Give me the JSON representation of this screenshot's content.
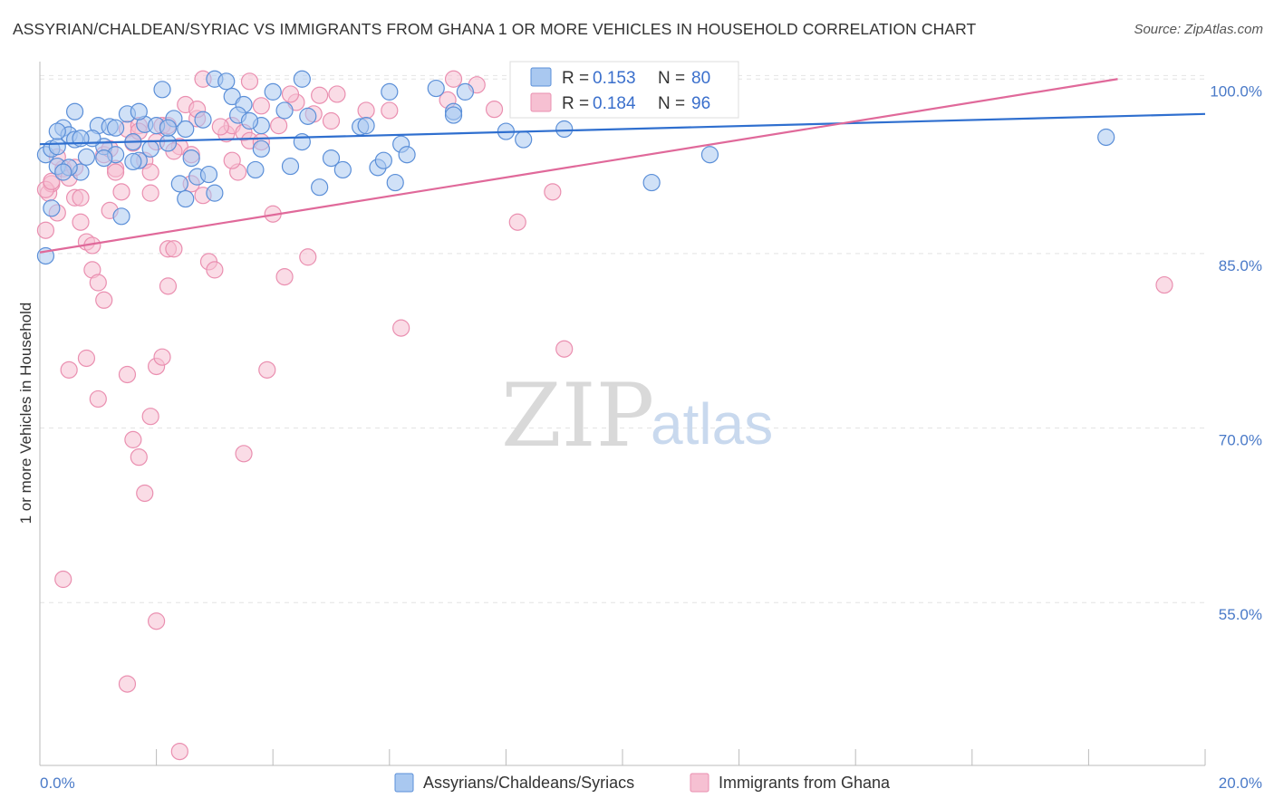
{
  "header": {
    "title": "ASSYRIAN/CHALDEAN/SYRIAC VS IMMIGRANTS FROM GHANA 1 OR MORE VEHICLES IN HOUSEHOLD CORRELATION CHART",
    "source": "Source: ZipAtlas.com"
  },
  "watermark": {
    "zip": "ZIP",
    "atlas": "atlas"
  },
  "colors": {
    "blue_fill": "#a9c8f0",
    "blue_stroke": "#5b8fd8",
    "blue_line": "#2f6fcf",
    "pink_fill": "#f6c0d2",
    "pink_stroke": "#ea8fb0",
    "pink_line": "#e0699a",
    "tick_text": "#4a7ac8",
    "grid": "#e4e4e4"
  },
  "legend": {
    "rows": [
      {
        "r_label": "R =",
        "r_value": "0.153",
        "n_label": "N =",
        "n_value": "80",
        "series": "blue"
      },
      {
        "r_label": "R =",
        "r_value": "0.184",
        "n_label": "N =",
        "n_value": "96",
        "series": "pink"
      }
    ]
  },
  "bottom_legend": [
    {
      "label": "Assyrians/Chaldeans/Syriacs",
      "series": "blue"
    },
    {
      "label": "Immigrants from Ghana",
      "series": "pink"
    }
  ],
  "chart_data": {
    "type": "scatter",
    "title": "ASSYRIAN/CHALDEAN/SYRIAC VS IMMIGRANTS FROM GHANA 1 OR MORE VEHICLES IN HOUSEHOLD CORRELATION CHART",
    "xlabel": "",
    "ylabel": "1 or more Vehicles in Household",
    "xlim": [
      0,
      20
    ],
    "ylim": [
      41,
      101.5
    ],
    "x_tick_labels": [
      "0.0%",
      "20.0%"
    ],
    "x_minor_ticks": [
      2,
      4,
      6,
      8,
      10,
      12,
      14,
      16,
      18
    ],
    "y_ticks": [
      55,
      70,
      85,
      100
    ],
    "y_tick_labels": [
      "55.0%",
      "70.0%",
      "85.0%",
      "100.0%"
    ],
    "series": [
      {
        "name": "Assyrians/Chaldeans/Syriacs",
        "color": "blue",
        "R": 0.153,
        "N": 80,
        "trend": {
          "x": [
            0,
            20
          ],
          "y": [
            94.4,
            97.0
          ]
        },
        "points": [
          [
            0.1,
            93.5
          ],
          [
            0.2,
            94.0
          ],
          [
            0.3,
            92.5
          ],
          [
            0.4,
            95.8
          ],
          [
            0.5,
            95.2
          ],
          [
            0.6,
            94.8
          ],
          [
            0.7,
            92.0
          ],
          [
            0.8,
            93.3
          ],
          [
            1.0,
            96.0
          ],
          [
            1.1,
            94.2
          ],
          [
            1.2,
            95.9
          ],
          [
            1.3,
            93.5
          ],
          [
            1.5,
            97.0
          ],
          [
            1.6,
            94.6
          ],
          [
            1.7,
            93.0
          ],
          [
            1.8,
            96.1
          ],
          [
            2.1,
            99.1
          ],
          [
            2.2,
            94.5
          ],
          [
            2.3,
            96.6
          ],
          [
            2.4,
            91.0
          ],
          [
            2.5,
            89.7
          ],
          [
            2.6,
            93.2
          ],
          [
            2.8,
            96.5
          ],
          [
            3.0,
            100.0
          ],
          [
            3.2,
            99.8
          ],
          [
            3.3,
            98.5
          ],
          [
            3.5,
            97.8
          ],
          [
            3.7,
            92.2
          ],
          [
            3.8,
            96.0
          ],
          [
            4.0,
            98.9
          ],
          [
            4.2,
            97.3
          ],
          [
            4.3,
            92.5
          ],
          [
            4.5,
            100.0
          ],
          [
            4.8,
            90.7
          ],
          [
            5.0,
            93.2
          ],
          [
            5.2,
            92.2
          ],
          [
            5.5,
            95.9
          ],
          [
            5.8,
            92.4
          ],
          [
            6.0,
            98.9
          ],
          [
            6.2,
            94.4
          ],
          [
            6.3,
            93.5
          ],
          [
            6.8,
            99.2
          ],
          [
            7.1,
            97.2
          ],
          [
            7.3,
            98.9
          ],
          [
            8.0,
            95.5
          ],
          [
            8.3,
            94.8
          ],
          [
            9.0,
            95.7
          ],
          [
            10.5,
            91.1
          ],
          [
            11.5,
            93.5
          ],
          [
            18.3,
            95.0
          ],
          [
            0.2,
            88.9
          ],
          [
            0.3,
            94.2
          ],
          [
            0.5,
            92.4
          ],
          [
            1.4,
            88.2
          ],
          [
            2.0,
            96.0
          ],
          [
            2.7,
            91.6
          ],
          [
            3.0,
            90.2
          ],
          [
            0.6,
            97.2
          ],
          [
            1.3,
            95.8
          ],
          [
            1.6,
            92.9
          ],
          [
            2.2,
            95.8
          ],
          [
            0.9,
            94.9
          ],
          [
            1.9,
            94.0
          ],
          [
            2.9,
            91.8
          ],
          [
            3.4,
            96.9
          ],
          [
            4.5,
            94.6
          ],
          [
            5.6,
            96.0
          ],
          [
            6.1,
            91.1
          ],
          [
            0.1,
            84.8
          ],
          [
            0.3,
            95.5
          ],
          [
            0.7,
            94.9
          ],
          [
            1.1,
            93.2
          ],
          [
            0.4,
            92.0
          ],
          [
            1.7,
            97.2
          ],
          [
            2.5,
            95.7
          ],
          [
            3.6,
            96.4
          ],
          [
            4.6,
            96.8
          ],
          [
            7.1,
            96.9
          ],
          [
            3.8,
            94.0
          ],
          [
            5.9,
            93.0
          ]
        ]
      },
      {
        "name": "Immigrants from Ghana",
        "color": "pink",
        "R": 0.184,
        "N": 96,
        "trend": {
          "x": [
            0,
            18.5
          ],
          "y": [
            85.1,
            100.0
          ]
        },
        "points": [
          [
            0.1,
            87.0
          ],
          [
            0.15,
            90.2
          ],
          [
            0.2,
            91.0
          ],
          [
            0.3,
            88.5
          ],
          [
            0.4,
            92.3
          ],
          [
            0.5,
            91.5
          ],
          [
            0.6,
            89.8
          ],
          [
            0.7,
            87.7
          ],
          [
            0.8,
            86.0
          ],
          [
            0.9,
            83.6
          ],
          [
            1.0,
            82.5
          ],
          [
            1.1,
            81.0
          ],
          [
            1.2,
            88.7
          ],
          [
            1.3,
            92.3
          ],
          [
            1.4,
            90.3
          ],
          [
            1.5,
            95.7
          ],
          [
            1.6,
            94.5
          ],
          [
            1.7,
            96.0
          ],
          [
            1.8,
            93.0
          ],
          [
            1.9,
            92.0
          ],
          [
            2.0,
            94.6
          ],
          [
            2.1,
            96.0
          ],
          [
            2.2,
            85.4
          ],
          [
            2.3,
            85.4
          ],
          [
            2.4,
            94.2
          ],
          [
            2.5,
            97.8
          ],
          [
            2.6,
            93.5
          ],
          [
            2.7,
            96.6
          ],
          [
            2.8,
            90.0
          ],
          [
            2.9,
            84.3
          ],
          [
            3.0,
            83.6
          ],
          [
            3.2,
            95.3
          ],
          [
            3.3,
            96.0
          ],
          [
            3.4,
            92.0
          ],
          [
            3.5,
            95.4
          ],
          [
            3.6,
            94.7
          ],
          [
            3.8,
            97.7
          ],
          [
            4.0,
            88.4
          ],
          [
            4.2,
            83.0
          ],
          [
            4.4,
            98.0
          ],
          [
            4.6,
            84.7
          ],
          [
            4.8,
            98.6
          ],
          [
            5.0,
            96.4
          ],
          [
            5.6,
            97.3
          ],
          [
            6.0,
            97.3
          ],
          [
            6.2,
            78.6
          ],
          [
            7.0,
            98.2
          ],
          [
            7.5,
            99.5
          ],
          [
            7.8,
            97.4
          ],
          [
            8.2,
            87.7
          ],
          [
            8.5,
            97.5
          ],
          [
            8.8,
            90.3
          ],
          [
            9.0,
            76.8
          ],
          [
            0.5,
            75.0
          ],
          [
            0.8,
            76.0
          ],
          [
            1.0,
            72.5
          ],
          [
            1.5,
            74.6
          ],
          [
            1.6,
            69.0
          ],
          [
            1.7,
            67.5
          ],
          [
            1.8,
            64.4
          ],
          [
            1.9,
            71.0
          ],
          [
            2.0,
            75.3
          ],
          [
            2.1,
            76.1
          ],
          [
            2.2,
            82.2
          ],
          [
            3.5,
            67.8
          ],
          [
            3.9,
            75.0
          ],
          [
            0.4,
            57.0
          ],
          [
            1.5,
            48.0
          ],
          [
            2.0,
            53.4
          ],
          [
            2.4,
            42.2
          ],
          [
            19.3,
            82.3
          ],
          [
            0.1,
            90.5
          ],
          [
            0.2,
            91.2
          ],
          [
            0.3,
            93.3
          ],
          [
            0.6,
            92.4
          ],
          [
            0.9,
            85.7
          ],
          [
            1.1,
            93.5
          ],
          [
            1.3,
            92.0
          ],
          [
            1.7,
            95.5
          ],
          [
            2.2,
            96.0
          ],
          [
            2.6,
            91.0
          ],
          [
            2.8,
            100.0
          ],
          [
            3.1,
            95.9
          ],
          [
            3.3,
            93.0
          ],
          [
            3.6,
            99.8
          ],
          [
            3.8,
            94.6
          ],
          [
            4.1,
            96.0
          ],
          [
            4.3,
            98.7
          ],
          [
            4.7,
            97.0
          ],
          [
            5.1,
            98.7
          ],
          [
            0.7,
            89.8
          ],
          [
            1.2,
            94.0
          ],
          [
            1.9,
            90.2
          ],
          [
            2.3,
            93.8
          ],
          [
            2.7,
            97.4
          ],
          [
            7.1,
            100.0
          ]
        ]
      }
    ]
  }
}
